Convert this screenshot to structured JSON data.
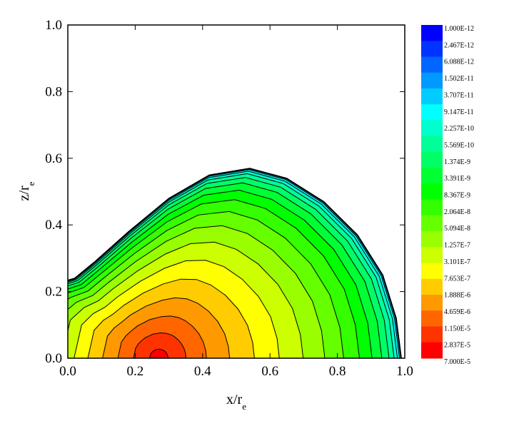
{
  "chart_data": {
    "type": "contour",
    "x_label": {
      "text": "x/r",
      "subscript": "e"
    },
    "y_label": {
      "text": "z/r",
      "subscript": "e"
    },
    "xlim": [
      0,
      1
    ],
    "ylim": [
      0,
      1
    ],
    "xticks": [
      {
        "value": 0,
        "label": "0.0"
      },
      {
        "value": 0.2,
        "label": "0.2"
      },
      {
        "value": 0.4,
        "label": "0.4"
      },
      {
        "value": 0.6,
        "label": "0.6"
      },
      {
        "value": 0.8,
        "label": "0.8"
      },
      {
        "value": 1,
        "label": "1.0"
      }
    ],
    "yticks": [
      {
        "value": 0,
        "label": "0.0"
      },
      {
        "value": 0.2,
        "label": "0.2"
      },
      {
        "value": 0.4,
        "label": "0.4"
      },
      {
        "value": 0.6,
        "label": "0.6"
      },
      {
        "value": 0.8,
        "label": "0.8"
      },
      {
        "value": 1,
        "label": "1.0"
      }
    ],
    "levels": [
      {
        "value": 1e-12,
        "label": "1.000E-12"
      },
      {
        "value": 2.467e-12,
        "label": "2.467E-12"
      },
      {
        "value": 6.088e-12,
        "label": "6.088E-12"
      },
      {
        "value": 1.502e-11,
        "label": "1.502E-11"
      },
      {
        "value": 3.707e-11,
        "label": "3.707E-11"
      },
      {
        "value": 9.147e-11,
        "label": "9.147E-11"
      },
      {
        "value": 2.257e-10,
        "label": "2.257E-10"
      },
      {
        "value": 5.569e-10,
        "label": "5.569E-10"
      },
      {
        "value": 1.374e-09,
        "label": "1.374E-9"
      },
      {
        "value": 3.391e-09,
        "label": "3.391E-9"
      },
      {
        "value": 8.367e-09,
        "label": "8.367E-9"
      },
      {
        "value": 2.064e-08,
        "label": "2.064E-8"
      },
      {
        "value": 5.094e-08,
        "label": "5.094E-8"
      },
      {
        "value": 1.257e-07,
        "label": "1.257E-7"
      },
      {
        "value": 3.101e-07,
        "label": "3.101E-7"
      },
      {
        "value": 7.653e-07,
        "label": "7.653E-7"
      },
      {
        "value": 1.888e-06,
        "label": "1.888E-6"
      },
      {
        "value": 4.659e-06,
        "label": "4.659E-6"
      },
      {
        "value": 1.15e-05,
        "label": "1.150E-5"
      },
      {
        "value": 2.837e-05,
        "label": "2.837E-5"
      },
      {
        "value": 7e-05,
        "label": "7.000E-5"
      }
    ],
    "colorbar_scale": "log",
    "colormap": "rainbow"
  }
}
